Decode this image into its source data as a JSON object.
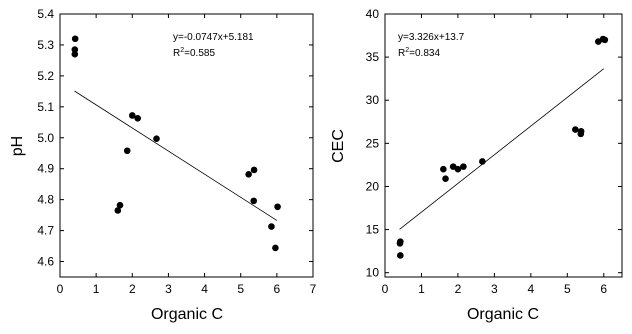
{
  "chart_data": [
    {
      "type": "scatter",
      "xlabel": "Organic C",
      "ylabel": "pH",
      "xlim": [
        0,
        7
      ],
      "ylim": [
        4.55,
        5.4
      ],
      "xticks": [
        "0",
        "1",
        "2",
        "3",
        "4",
        "5",
        "6",
        "7"
      ],
      "yticks": [
        "4.6",
        "4.7",
        "4.8",
        "4.9",
        "5.0",
        "5.1",
        "5.2",
        "5.3",
        "5.4"
      ],
      "equation": "y=-0.0747x+5.181",
      "r2_prefix": "R",
      "r2_sup": "2",
      "r2_value": "=0.585",
      "fit": {
        "slope": -0.0747,
        "intercept": 5.181,
        "x_range": [
          0.4,
          6.0
        ]
      },
      "points": [
        {
          "x": 0.42,
          "y": 5.32
        },
        {
          "x": 0.41,
          "y": 5.285
        },
        {
          "x": 0.41,
          "y": 5.27
        },
        {
          "x": 1.6,
          "y": 4.765
        },
        {
          "x": 1.66,
          "y": 4.782
        },
        {
          "x": 1.86,
          "y": 4.958
        },
        {
          "x": 2.0,
          "y": 5.072
        },
        {
          "x": 2.15,
          "y": 5.063
        },
        {
          "x": 2.67,
          "y": 4.997
        },
        {
          "x": 5.22,
          "y": 4.882
        },
        {
          "x": 5.37,
          "y": 4.896
        },
        {
          "x": 5.36,
          "y": 4.796
        },
        {
          "x": 5.85,
          "y": 4.713
        },
        {
          "x": 6.02,
          "y": 4.777
        },
        {
          "x": 5.96,
          "y": 4.644
        }
      ],
      "grid": false
    },
    {
      "type": "scatter",
      "xlabel": "Organic C",
      "ylabel": "CEC",
      "xlim": [
        0,
        6.5
      ],
      "ylim": [
        9.5,
        40
      ],
      "xticks": [
        "0",
        "1",
        "2",
        "3",
        "4",
        "5",
        "6"
      ],
      "yticks": [
        "10",
        "15",
        "20",
        "25",
        "30",
        "35",
        "40"
      ],
      "equation": "y=3.326x+13.7",
      "r2_prefix": "R",
      "r2_sup": "2",
      "r2_value": "=0.834",
      "fit": {
        "slope": 3.326,
        "intercept": 13.7,
        "x_range": [
          0.4,
          6.0
        ]
      },
      "points": [
        {
          "x": 0.42,
          "y": 13.6
        },
        {
          "x": 0.41,
          "y": 13.4
        },
        {
          "x": 0.42,
          "y": 12.0
        },
        {
          "x": 1.6,
          "y": 22.0
        },
        {
          "x": 1.66,
          "y": 20.9
        },
        {
          "x": 1.87,
          "y": 22.3
        },
        {
          "x": 2.0,
          "y": 22.0
        },
        {
          "x": 2.15,
          "y": 22.3
        },
        {
          "x": 2.67,
          "y": 22.9
        },
        {
          "x": 5.22,
          "y": 26.6
        },
        {
          "x": 5.37,
          "y": 26.1
        },
        {
          "x": 5.38,
          "y": 26.4
        },
        {
          "x": 5.85,
          "y": 36.8
        },
        {
          "x": 5.98,
          "y": 37.1
        },
        {
          "x": 6.03,
          "y": 37.0
        }
      ],
      "grid": false
    }
  ]
}
